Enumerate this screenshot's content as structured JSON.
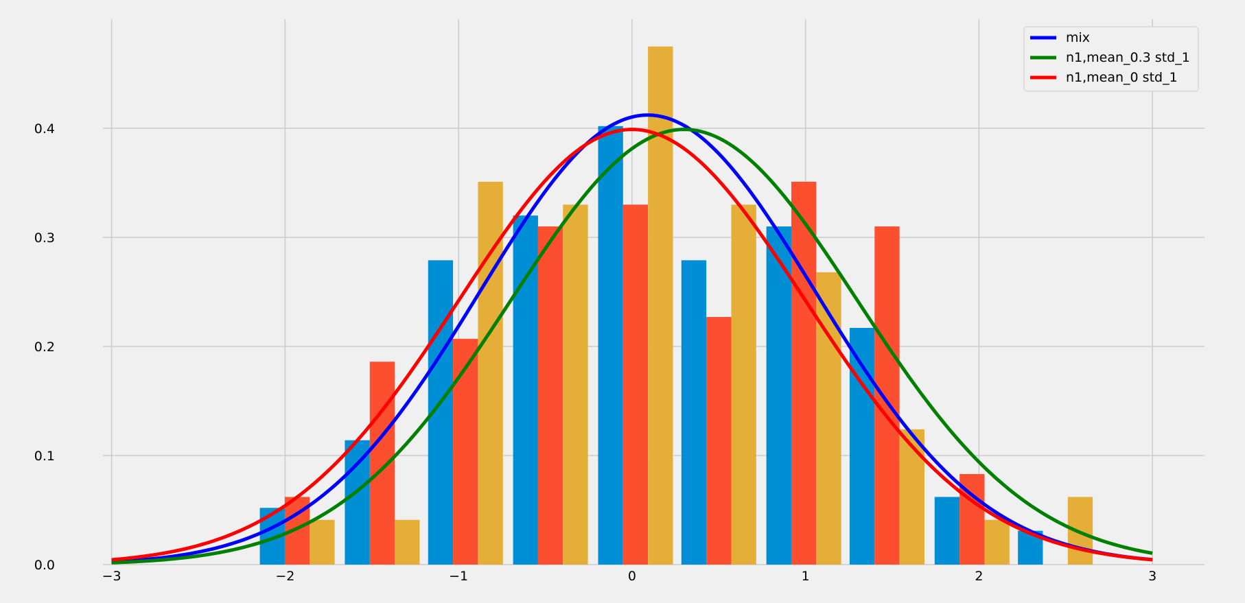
{
  "chart_data": {
    "type": "bar",
    "title": "",
    "xlabel": "",
    "ylabel": "",
    "xlim": [
      -3.05,
      3.3
    ],
    "ylim": [
      0,
      0.5
    ],
    "grid": true,
    "legend_position": "top-right",
    "x_ticks": [
      -3,
      -2,
      -1,
      0,
      1,
      2,
      3
    ],
    "x_tick_labels": [
      "−3",
      "−2",
      "−1",
      "0",
      "1",
      "2",
      "3"
    ],
    "y_ticks": [
      0.0,
      0.1,
      0.2,
      0.3,
      0.4
    ],
    "y_tick_labels": [
      "0.0",
      "0.1",
      "0.2",
      "0.3",
      "0.4"
    ],
    "bar_group_centers": [
      -1.93,
      -1.44,
      -0.96,
      -0.47,
      0.02,
      0.5,
      0.99,
      1.47,
      1.96,
      2.44
    ],
    "bar_series": [
      {
        "color": "#008fd5",
        "values": [
          0.052,
          0.114,
          0.279,
          0.32,
          0.402,
          0.279,
          0.31,
          0.217,
          0.062,
          0.031
        ]
      },
      {
        "color": "#fc4f30",
        "values": [
          0.062,
          0.186,
          0.207,
          0.31,
          0.33,
          0.227,
          0.351,
          0.31,
          0.083,
          0.0
        ]
      },
      {
        "color": "#e5ae38",
        "values": [
          0.041,
          0.041,
          0.351,
          0.33,
          0.475,
          0.33,
          0.268,
          0.124,
          0.041,
          0.062
        ]
      }
    ],
    "line_x_range": [
      -3,
      3
    ],
    "line_series": [
      {
        "name": "mix",
        "color": "#0000ff",
        "type": "normal_pdf",
        "mean": 0.09,
        "std": 0.968
      },
      {
        "name": "n1,mean_0.3 std_1",
        "color": "#008000",
        "type": "normal_pdf",
        "mean": 0.3,
        "std": 1
      },
      {
        "name": "n1,mean_0 std_1",
        "color": "#ff0000",
        "type": "normal_pdf",
        "mean": 0,
        "std": 1
      }
    ]
  }
}
